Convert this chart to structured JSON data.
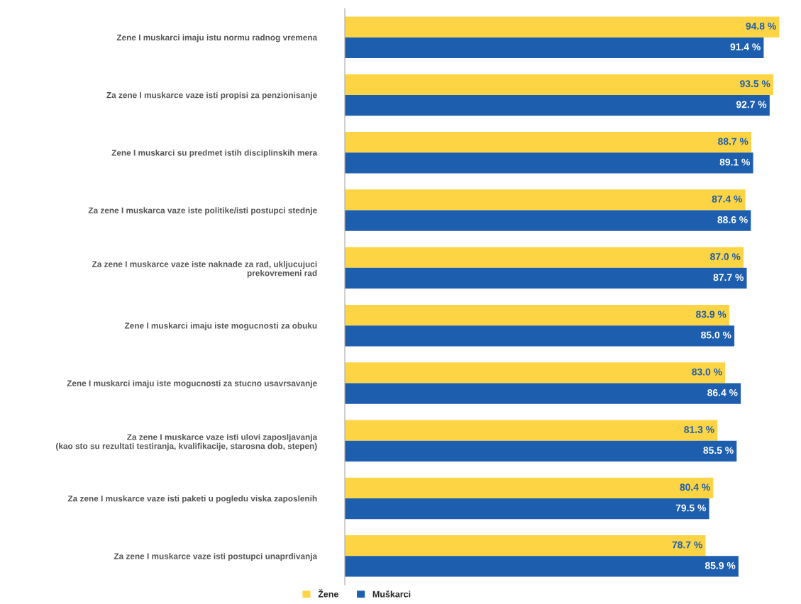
{
  "chart_data": {
    "type": "bar",
    "orientation": "horizontal",
    "categories": [
      "Zene I muskarci imaju istu normu radnog vremena",
      "Za zene I muskarce vaze isti propisi za penzionisanje",
      "Zene I muskarci su predmet istih disciplinskih mera",
      "Za zene I muskarca vaze iste politike/isti postupci stednje",
      "Za zene I muskarce vaze iste naknade za rad, ukljucujuci\nprekovremeni rad",
      "Zene I muskarci imaju iste mogucnosti za obuku",
      "Zene I muskarci imaju iste mogucnosti za stucno usavrsavanje",
      "Za zene I muskarce vaze isti ulovi zaposljavanja\n(kao sto su rezultati testiranja, kvalifikacije, starosna dob, stepen)",
      "Za zene I muskarce vaze isti paketi u pogledu viska zaposlenih",
      "Za zene I muskarce vaze isti postupci unaprdivanja"
    ],
    "series": [
      {
        "name": "Žene",
        "color": "#fdd444",
        "values": [
          94.8,
          93.5,
          88.7,
          87.4,
          87.0,
          83.9,
          83.0,
          81.3,
          80.4,
          78.7
        ],
        "value_labels": [
          "94.8 %",
          "93.5 %",
          "88.7 %",
          "87.4 %",
          "87.0 %",
          "83.9 %",
          "83.0 %",
          "81.3 %",
          "80.4 %",
          "78.7 %"
        ]
      },
      {
        "name": "Muškarci",
        "color": "#1d5eae",
        "values": [
          91.4,
          92.7,
          89.1,
          88.6,
          87.7,
          85.0,
          86.4,
          85.5,
          79.5,
          85.9
        ],
        "value_labels": [
          "91.4 %",
          "92.7 %",
          "89.1 %",
          "88.6 %",
          "87.7 %",
          "85.0 %",
          "86.4 %",
          "85.5 %",
          "79.5 %",
          "85.9 %"
        ]
      }
    ],
    "legend": "bottom",
    "grid": false,
    "tick_labels": "y"
  }
}
